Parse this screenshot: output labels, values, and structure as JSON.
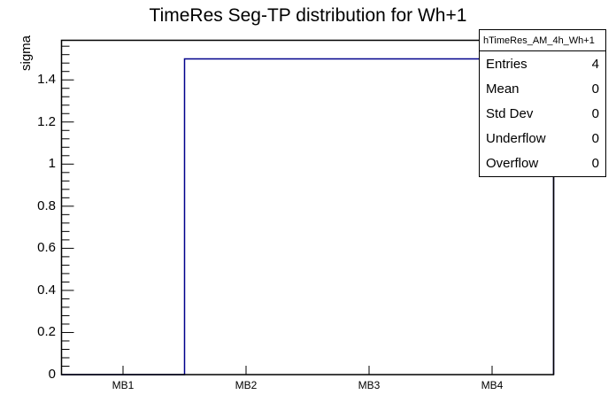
{
  "chart_data": {
    "type": "bar",
    "style": "root-step-histogram",
    "title": "TimeRes Seg-TP distribution for Wh+1",
    "xlabel": "",
    "ylabel": "sigma",
    "categories": [
      "MB1",
      "MB2",
      "MB3",
      "MB4"
    ],
    "values": [
      0,
      1.5,
      1.5,
      1.5
    ],
    "ylim": [
      0,
      1.575
    ],
    "yticks": [
      0,
      0.2,
      0.4,
      0.6,
      0.8,
      1,
      1.2,
      1.4
    ],
    "ytick_labels": [
      "0",
      "0.2",
      "0.4",
      "0.6",
      "0.8",
      "1",
      "1.2",
      "1.4"
    ],
    "minor_tick_step": 0.04,
    "grid": false,
    "line_color": "#00008b",
    "frame_color": "#000000",
    "background_color": "#ffffff"
  },
  "stats_box": {
    "title": "hTimeRes_AM_4h_Wh+1",
    "rows": [
      {
        "label": "Entries",
        "value": "4"
      },
      {
        "label": "Mean",
        "value": "0"
      },
      {
        "label": "Std Dev",
        "value": "0"
      },
      {
        "label": "Underflow",
        "value": "0"
      },
      {
        "label": "Overflow",
        "value": "0"
      }
    ]
  }
}
